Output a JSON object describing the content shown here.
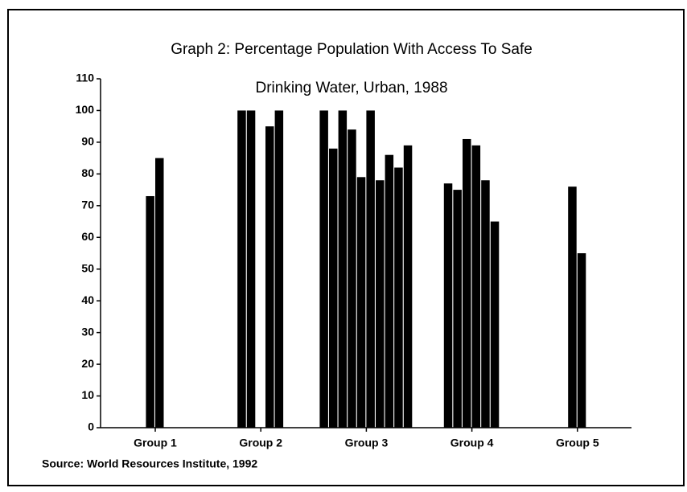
{
  "chart_data": {
    "type": "bar",
    "title": [
      "Graph  2: Percentage Population With Access To Safe",
      "Drinking Water, Urban, 1988"
    ],
    "source": "Source: World Resources Institute, 1992",
    "color": "#000000",
    "groups": [
      {
        "name": "Group 1",
        "values": [
          73,
          85
        ]
      },
      {
        "name": "Group 2",
        "values": [
          100,
          100,
          null,
          95,
          100
        ]
      },
      {
        "name": "Group 3",
        "values": [
          100,
          88,
          100,
          94,
          79,
          100,
          78,
          86,
          82,
          89
        ]
      },
      {
        "name": "Group 4",
        "values": [
          77,
          75,
          91,
          89,
          78,
          65
        ]
      },
      {
        "name": "Group 5",
        "values": [
          76,
          55
        ]
      }
    ],
    "ylim": [
      0,
      110
    ],
    "yticks": [
      0,
      10,
      20,
      30,
      40,
      50,
      60,
      70,
      80,
      90,
      100,
      110
    ],
    "grid": false
  }
}
